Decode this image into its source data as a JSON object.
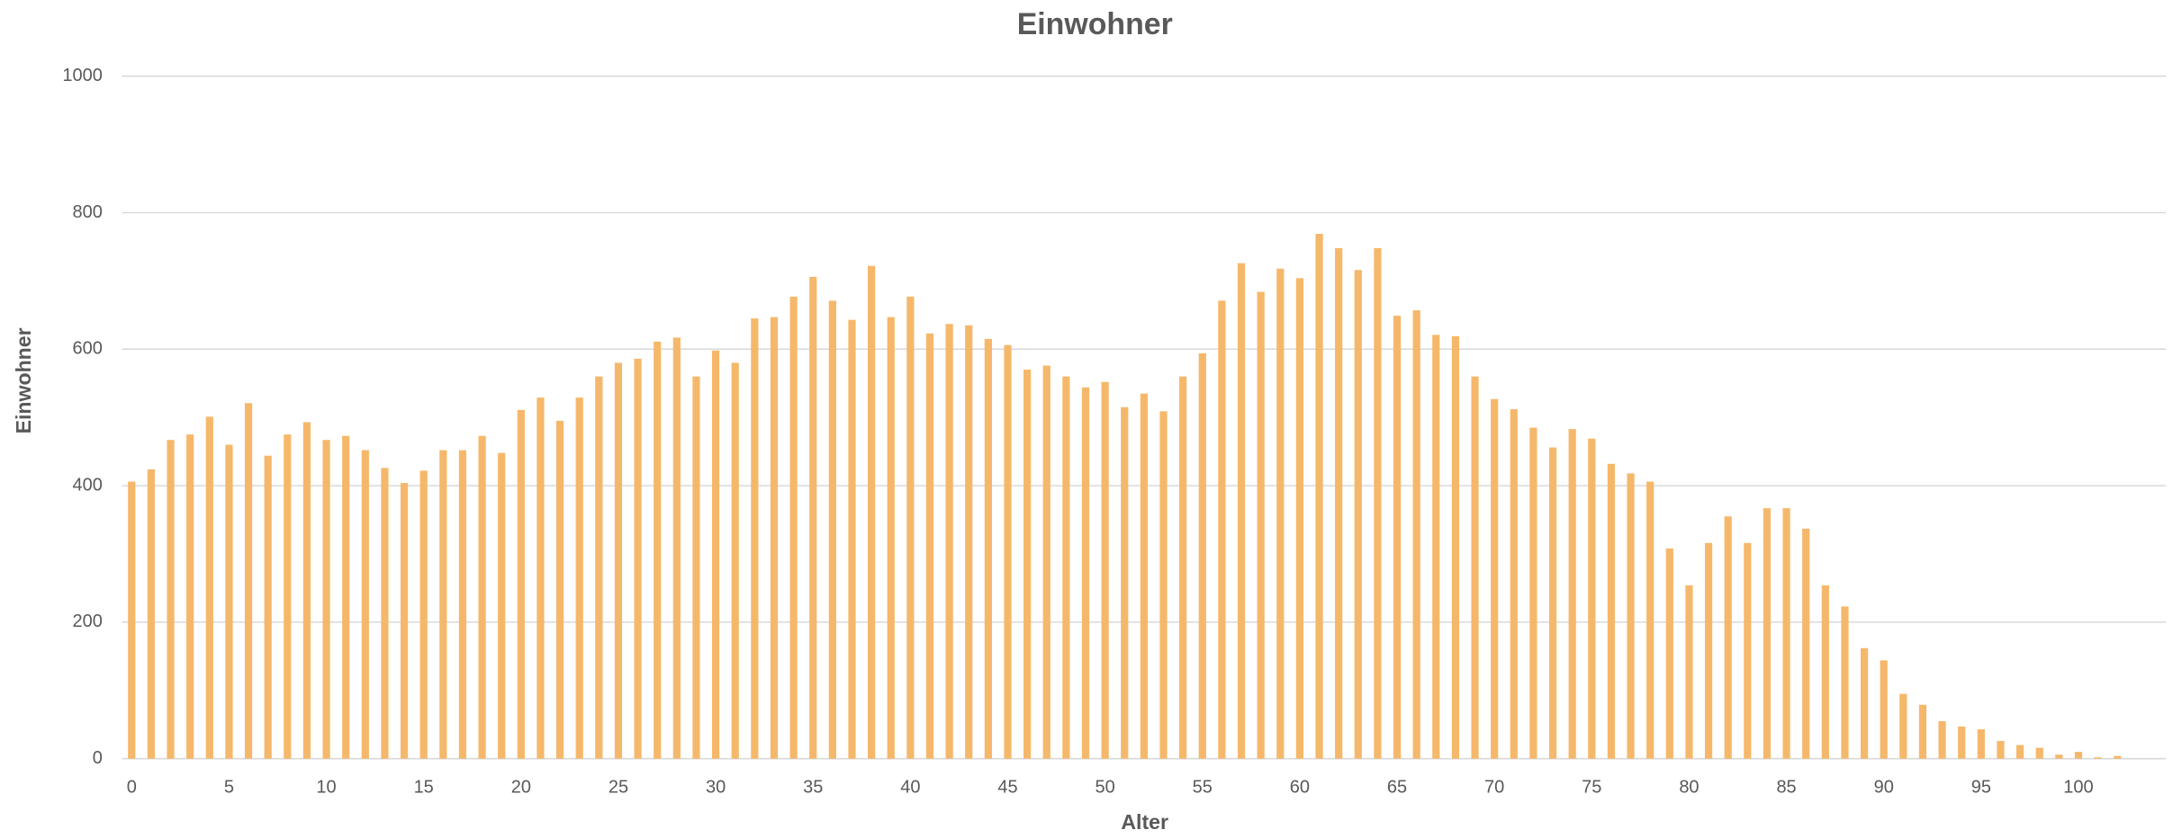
{
  "chart_data": {
    "type": "bar",
    "title": "Einwohner",
    "x_label": "Alter",
    "y_label": "Einwohner",
    "categories": [
      "0",
      null,
      null,
      null,
      null,
      "5",
      null,
      null,
      null,
      null,
      "10",
      null,
      null,
      null,
      null,
      "15",
      null,
      null,
      null,
      null,
      "20",
      null,
      null,
      null,
      null,
      "25",
      null,
      null,
      null,
      null,
      "30",
      null,
      null,
      null,
      null,
      "35",
      null,
      null,
      null,
      null,
      "40",
      null,
      null,
      null,
      null,
      "45",
      null,
      null,
      null,
      null,
      "50",
      null,
      null,
      null,
      null,
      "55",
      null,
      null,
      null,
      null,
      "60",
      null,
      null,
      null,
      null,
      "65",
      null,
      null,
      null,
      null,
      "70",
      null,
      null,
      null,
      null,
      "75",
      null,
      null,
      null,
      null,
      "80",
      null,
      null,
      null,
      null,
      "85",
      null,
      null,
      null,
      null,
      "90",
      null,
      null,
      null,
      null,
      "95",
      null,
      null,
      null,
      null,
      "100",
      null,
      null,
      null,
      null
    ],
    "values": [
      406,
      424,
      467,
      475,
      501,
      460,
      521,
      444,
      475,
      493,
      467,
      473,
      452,
      426,
      404,
      422,
      452,
      452,
      473,
      448,
      511,
      529,
      495,
      529,
      560,
      580,
      586,
      611,
      617,
      560,
      598,
      580,
      645,
      647,
      677,
      706,
      671,
      643,
      722,
      647,
      677,
      623,
      637,
      635,
      615,
      606,
      570,
      576,
      560,
      544,
      552,
      515,
      535,
      509,
      560,
      594,
      671,
      726,
      684,
      718,
      704,
      769,
      748,
      716,
      748,
      649,
      657,
      621,
      619,
      560,
      527,
      512,
      485,
      456,
      483,
      469,
      432,
      418,
      406,
      308,
      254,
      316,
      355,
      316,
      367,
      367,
      337,
      254,
      223,
      162,
      144,
      95,
      79,
      55,
      47,
      43,
      26,
      20,
      16,
      6,
      10,
      2,
      4,
      0,
      0
    ],
    "color": "#f5b86b",
    "ylim": [
      0,
      1000
    ],
    "yticks": [
      0,
      200,
      400,
      600,
      800,
      1000
    ],
    "grid": true
  }
}
